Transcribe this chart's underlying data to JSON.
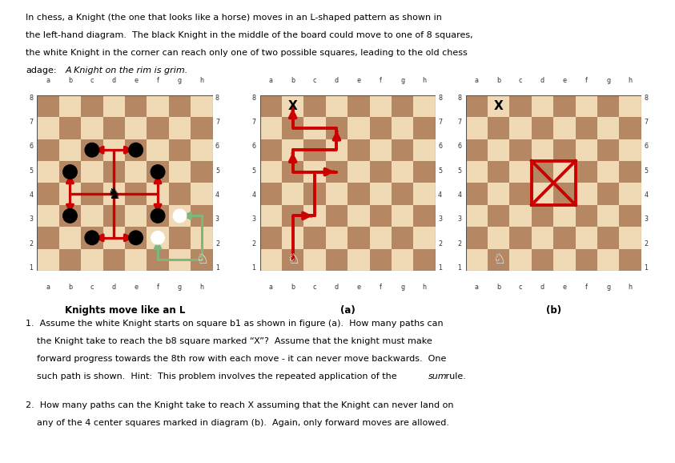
{
  "light_square": "#f0d9b5",
  "dark_square": "#b58863",
  "background": "#ffffff",
  "red_arrow": "#cc0000",
  "green_arrow": "#7cb87c",
  "files": [
    "a",
    "b",
    "c",
    "d",
    "e",
    "f",
    "g",
    "h"
  ],
  "ranks": [
    "1",
    "2",
    "3",
    "4",
    "5",
    "6",
    "7",
    "8"
  ],
  "label1": "Knights move like an L",
  "label2": "(a)",
  "label3": "(b)",
  "header_lines": [
    "In chess, a Knight (the one that looks like a horse) moves in an L-shaped pattern as shown in",
    "the left-hand diagram.  The black Knight in the middle of the board could move to one of 8 squares,",
    "the white Knight in the corner can reach only one of two possible squares, leading to the old chess",
    "adage:"
  ],
  "adage_italic": "A Knight on the rim is grim.",
  "q1_lines": [
    "1.  Assume the white Knight starts on square b1 as shown in figure (a).  How many paths can",
    "    the Knight take to reach the b8 square marked “X”?  Assume that the knight must make",
    "    forward progress towards the 8th row with each move - it can never move backwards.  One",
    "    such path is shown.  Hint:  This problem involves the repeated application of the"
  ],
  "q1_italic": "sum",
  "q1_tail": " rule.",
  "q2_lines": [
    "2.  How many paths can the Knight take to reach X assuming that the Knight can never land on",
    "    any of the 4 center squares marked in diagram (b).  Again, only forward moves are allowed."
  ]
}
